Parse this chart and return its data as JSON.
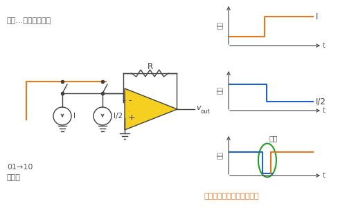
{
  "bg_color": "#ffffff",
  "text_color": "#595959",
  "orange_color": "#E8761A",
  "blue_color": "#2060C8",
  "green_color": "#20A020",
  "yellow_color": "#F5D020",
  "dark_color": "#404040",
  "title_text": "例如…在电流模式中",
  "switch_text_line1": "01→10",
  "switch_text_line2": "切换时",
  "bottom_text": "切换时有时间差和观察干扰",
  "R_label": "R",
  "vout_label": "v",
  "vout_sub": "out",
  "I_label": "I",
  "I2_label": "I/2",
  "disturbance_label": "干扰",
  "graph1_label": "I",
  "graph2_label": "I/2",
  "elec_label": "电流",
  "t_label": "t",
  "minus_label": "-",
  "plus_label": "+"
}
